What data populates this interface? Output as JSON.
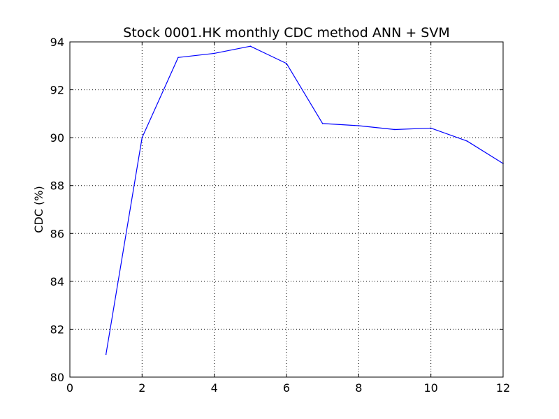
{
  "chart_data": {
    "type": "line",
    "title": "Stock 0001.HK monthly CDC method ANN + SVM",
    "xlabel": "",
    "ylabel": "CDC (%)",
    "xlim": [
      0,
      12
    ],
    "ylim": [
      80,
      94
    ],
    "xticks": [
      0,
      2,
      4,
      6,
      8,
      10,
      12
    ],
    "yticks": [
      80,
      82,
      84,
      86,
      88,
      90,
      92,
      94
    ],
    "grid": true,
    "legend": "none",
    "series": [
      {
        "color": "#0000ff",
        "x": [
          1,
          2,
          3,
          4,
          5,
          6,
          7,
          8,
          9,
          10,
          11,
          12
        ],
        "y": [
          80.95,
          90.0,
          93.35,
          93.52,
          93.82,
          93.1,
          90.59,
          90.5,
          90.34,
          90.4,
          89.86,
          88.92
        ]
      }
    ]
  }
}
